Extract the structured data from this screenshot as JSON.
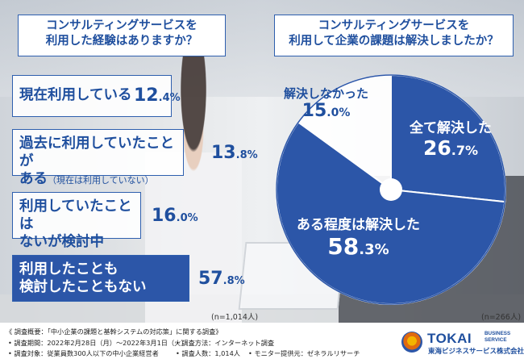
{
  "left_question": {
    "line1": "コンサルティングサービスを",
    "line2": "利用した経験はありますか？"
  },
  "right_question": {
    "line1": "コンサルティングサービスを",
    "line2": "利用して企業の課題は解決しましたか？"
  },
  "bars": [
    {
      "label_line1": "現在利用している",
      "label_line2": "",
      "sub": "",
      "value_int": "12",
      "value_dec": ".4",
      "unit": "%"
    },
    {
      "label_line1": "過去に利用していたことが",
      "label_line2": "ある",
      "sub": "（現在は利用していない）",
      "value_int": "13",
      "value_dec": ".8",
      "unit": "%"
    },
    {
      "label_line1": "利用していたことは",
      "label_line2": "ないが検討中",
      "sub": "",
      "value_int": "16",
      "value_dec": ".0",
      "unit": "%"
    },
    {
      "label_line1": "利用したことも",
      "label_line2": "検討したこともない",
      "sub": "",
      "value_int": "57",
      "value_dec": ".8",
      "unit": "%"
    }
  ],
  "left_n": "(n=1,014人)",
  "right_n": "(n=266人)",
  "chart_data": [
    {
      "type": "bar",
      "categories": [
        "現在利用している",
        "過去に利用していたことがある（現在は利用していない）",
        "利用していたことはないが検討中",
        "利用したことも検討したこともない"
      ],
      "values": [
        12.4,
        13.8,
        16.0,
        57.8
      ],
      "unit": "%",
      "n": "n=1,014人"
    },
    {
      "type": "pie",
      "labels": [
        "全て解決した",
        "ある程度は解決した",
        "解決しなかった"
      ],
      "values": [
        26.7,
        58.3,
        15.0
      ],
      "colors": [
        "#2c56a8",
        "#2c56a8",
        "#ffffff"
      ],
      "unit": "%",
      "n": "n=266人"
    }
  ],
  "pie_labels": [
    {
      "name": "全て解決した",
      "int": "26",
      "dec": ".7",
      "unit": "%"
    },
    {
      "name": "ある程度は解決した",
      "int": "58",
      "dec": ".3",
      "unit": "%"
    },
    {
      "name": "解決しなかった",
      "int": "15",
      "dec": ".0",
      "unit": "%"
    }
  ],
  "footer": {
    "summary": "《 調査概要：「中小企業の課題と基幹システムの対応策」に関する調査》",
    "period": "• 調査期間：2022年2月28日（月）～2022年3月1日（火）",
    "method": "• 調査方法：インターネット調査",
    "target": "• 調査対象：従業員数300人以下の中小企業経営者",
    "count": "• 調査人数：1,014人",
    "monitor": "• モニター提供元：ゼネラルリサーチ"
  },
  "logo": {
    "main": "TOKAI",
    "side1": "BUSINESS",
    "side2": "SERVICE",
    "jp": "東海ビジネスサービス株式会社"
  },
  "colors": {
    "accent": "#2c56a8",
    "text_blue": "#1f4f9e"
  }
}
